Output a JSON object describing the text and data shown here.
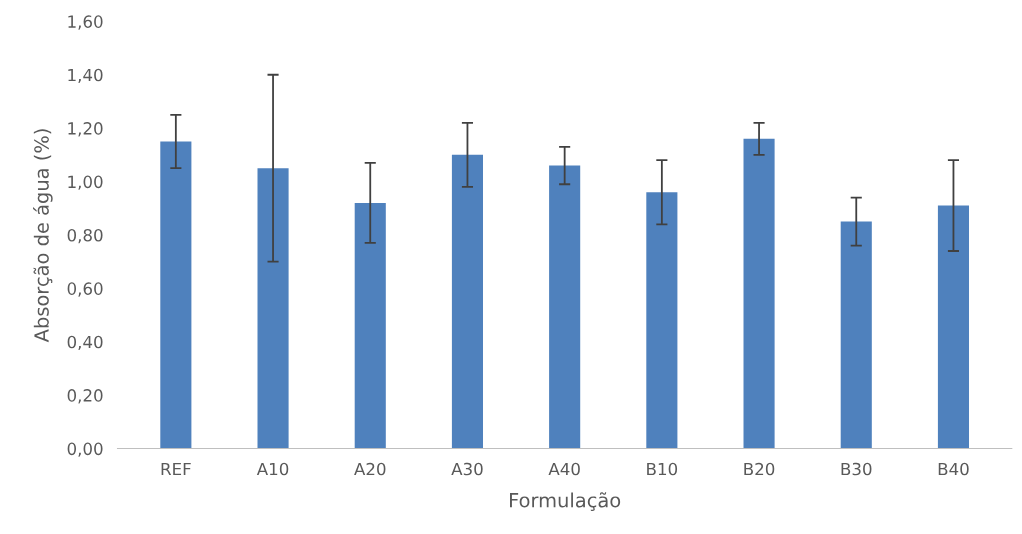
{
  "chart_data": {
    "type": "bar",
    "xlabel": "Formulação",
    "ylabel": "Absorção de água (%)",
    "categories": [
      "REF",
      "A10",
      "A20",
      "A30",
      "A40",
      "B10",
      "B20",
      "B30",
      "B40"
    ],
    "values": [
      1.15,
      1.05,
      0.92,
      1.1,
      1.06,
      0.96,
      1.16,
      0.85,
      0.91
    ],
    "errors": [
      0.1,
      0.35,
      0.15,
      0.12,
      0.07,
      0.12,
      0.06,
      0.09,
      0.17
    ],
    "color": "#4f81bd",
    "ylim": [
      0,
      1.6
    ],
    "yticks": [
      {
        "value": 0,
        "label": "0,00"
      },
      {
        "value": 0.2,
        "label": "0,20"
      },
      {
        "value": 0.4,
        "label": "0,40"
      },
      {
        "value": 0.6,
        "label": "0,60"
      },
      {
        "value": 0.8,
        "label": "0,80"
      },
      {
        "value": 1.0,
        "label": "1,00"
      },
      {
        "value": 1.2,
        "label": "1,20"
      },
      {
        "value": 1.4,
        "label": "1,40"
      },
      {
        "value": 1.6,
        "label": "1,60"
      }
    ],
    "grid": false,
    "legend": false
  }
}
